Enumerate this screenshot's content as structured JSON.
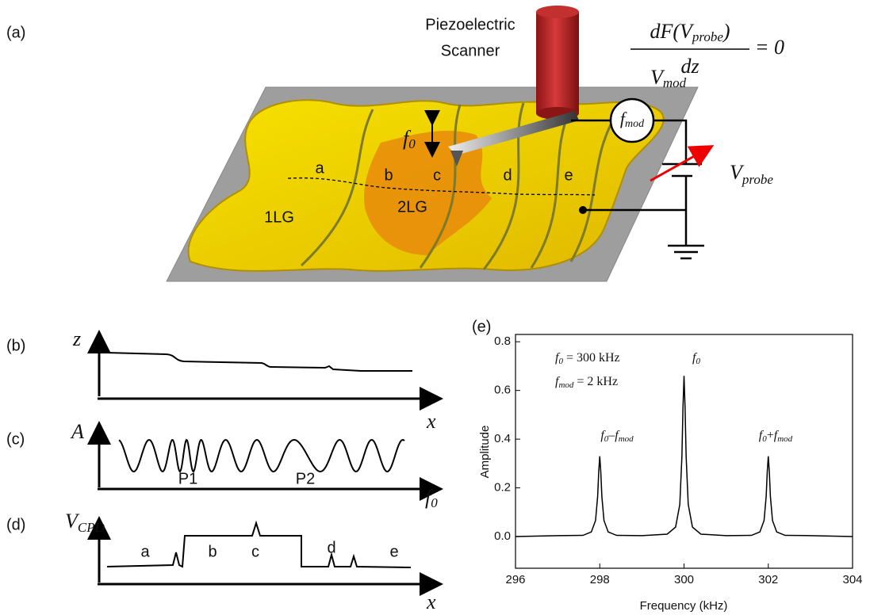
{
  "panel_a": {
    "label": "(a)",
    "scanner": [
      "Piezoelectric",
      "Scanner"
    ],
    "equation": {
      "numerator": "dF(V",
      "numerator_sub": "probe",
      "numerator_end": ")",
      "denominator": "dz",
      "rhs": "= 0"
    },
    "v_mod": {
      "base": "V",
      "sub": "mod"
    },
    "f_mod": {
      "base": "f",
      "sub": "mod"
    },
    "f0": {
      "base": "f",
      "sub": "0"
    },
    "v_probe": {
      "base": "V",
      "sub": "probe"
    },
    "regions": [
      "a",
      "b",
      "c",
      "d",
      "e"
    ],
    "layers": [
      "1LG",
      "2LG"
    ]
  },
  "panel_b": {
    "label": "(b)",
    "y_axis": "z",
    "x_axis": "x"
  },
  "panel_c": {
    "label": "(c)",
    "y_axis": "A",
    "x_axis": {
      "base": "f",
      "sub": "0"
    },
    "peaks": [
      "P1",
      "P2"
    ]
  },
  "panel_d": {
    "label": "(d)",
    "y_axis": {
      "base": "V",
      "sub": "CPD"
    },
    "x_axis": "x",
    "regions": [
      "a",
      "b",
      "c",
      "d",
      "e"
    ]
  },
  "chart_data": {
    "type": "line",
    "panel_label": "(e)",
    "xlabel": "Frequency (kHz)",
    "ylabel": "Amplitude",
    "color": "#000000",
    "x": [
      296,
      297,
      297.6,
      297.8,
      297.9,
      297.95,
      297.975,
      298,
      298.025,
      298.05,
      298.1,
      298.2,
      298.4,
      299,
      299.6,
      299.8,
      299.9,
      299.95,
      299.975,
      300,
      300.025,
      300.05,
      300.1,
      300.2,
      300.4,
      301,
      301.6,
      301.8,
      301.9,
      301.95,
      301.975,
      302,
      302.025,
      302.05,
      302.1,
      302.2,
      302.4,
      303,
      304
    ],
    "values": [
      0,
      0.004,
      0.005,
      0.019,
      0.066,
      0.165,
      0.264,
      0.33,
      0.264,
      0.165,
      0.066,
      0.019,
      0.005,
      0.004,
      0.01,
      0.039,
      0.132,
      0.33,
      0.528,
      0.66,
      0.528,
      0.33,
      0.132,
      0.039,
      0.01,
      0.004,
      0.005,
      0.019,
      0.066,
      0.165,
      0.264,
      0.33,
      0.264,
      0.165,
      0.066,
      0.019,
      0.005,
      0.004,
      0
    ],
    "xlim": [
      296,
      304
    ],
    "xticks": [
      296,
      298,
      300,
      302,
      304
    ],
    "ylim": [
      -0.13,
      0.83
    ],
    "yticks": [
      {
        "value": 0,
        "label": "0.0"
      },
      0.2,
      0.4,
      0.6,
      0.8
    ],
    "annotations": [
      {
        "base": "f",
        "sub": "0",
        "rest": " = 300 kHz"
      },
      {
        "base": "f",
        "sub": "mod",
        "rest": " = 2 kHz"
      },
      {
        "base": "f",
        "sub": "0"
      },
      {
        "base": "f",
        "sub": "0",
        "rest": "–",
        "base2": "f",
        "sub2": "mod"
      },
      {
        "base": "f",
        "sub": "0",
        "rest": "+",
        "base2": "f",
        "sub2": "mod"
      }
    ]
  }
}
